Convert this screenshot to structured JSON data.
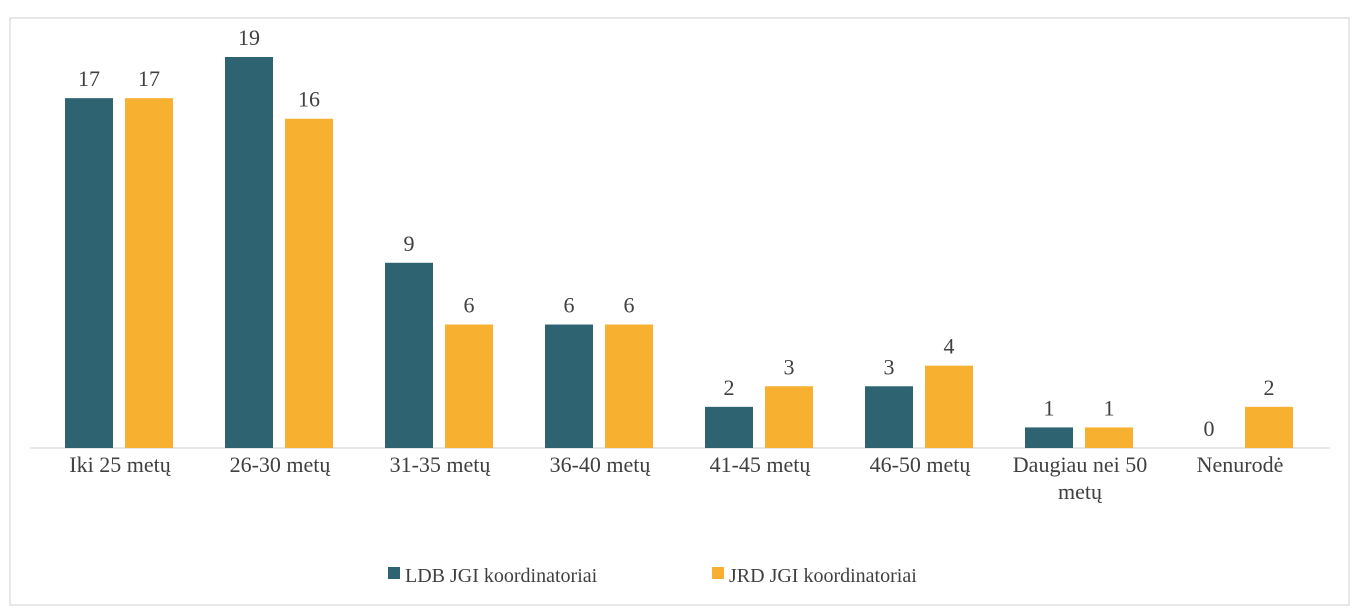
{
  "chart_data": {
    "type": "bar",
    "categories": [
      "Iki 25 metų",
      "26-30 metų",
      "31-35 metų",
      "36-40 metų",
      "41-45 metų",
      "46-50 metų",
      "Daugiau nei 50 metų",
      "Nenurodė"
    ],
    "series": [
      {
        "name": "LDB JGI koordinatoriai",
        "color": "#2e6372",
        "values": [
          17,
          19,
          9,
          6,
          2,
          3,
          1,
          0
        ]
      },
      {
        "name": "JRD JGI koordinatoriai",
        "color": "#f7b030",
        "values": [
          17,
          16,
          6,
          6,
          3,
          4,
          1,
          2
        ]
      }
    ],
    "ylim": [
      0,
      19
    ],
    "legend": "bottom"
  }
}
